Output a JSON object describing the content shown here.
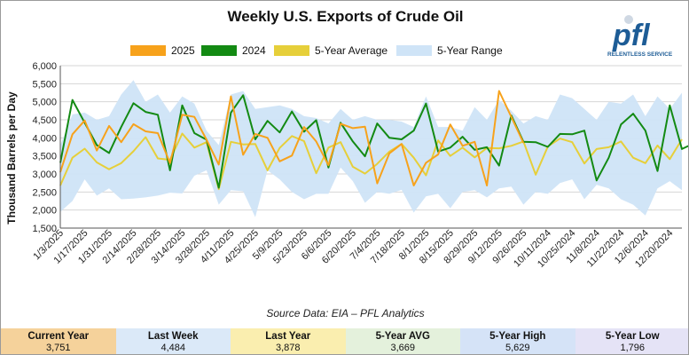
{
  "title": "Weekly U.S. Exports of Crude Oil",
  "source": "Source Data: EIA – PFL Analytics",
  "logo": {
    "text": "pfl",
    "tagline": "RELENTLESS SERVICE"
  },
  "colors": {
    "c2025": "#f7a21b",
    "c2024": "#138a13",
    "avg": "#e6cf3a",
    "range": "#cfe4f7"
  },
  "stats": [
    {
      "label": "Current Year",
      "value": "3,751",
      "color": "#f5d29b"
    },
    {
      "label": "Last Week",
      "value": "4,484",
      "color": "#dbe9f8"
    },
    {
      "label": "Last Year",
      "value": "3,878",
      "color": "#faeeaf"
    },
    {
      "label": "5-Year AVG",
      "value": "3,669",
      "color": "#e4f1dc"
    },
    {
      "label": "5-Year High",
      "value": "5,629",
      "color": "#d5e3f7"
    },
    {
      "label": "5-Year Low",
      "value": "1,796",
      "color": "#e5e3f6"
    }
  ],
  "chart_data": {
    "type": "line",
    "title": "Weekly U.S. Exports of Crude Oil",
    "ylabel": "Thousand Barrels per Day",
    "ylim": [
      1500,
      6000
    ],
    "yticks": [
      "1,500",
      "2,000",
      "2,500",
      "3,000",
      "3,500",
      "4,000",
      "4,500",
      "5,000",
      "5,500",
      "6,000"
    ],
    "x_tick_labels": [
      "1/3/2025",
      "1/17/2025",
      "1/31/2025",
      "2/14/2025",
      "2/28/2025",
      "3/14/2025",
      "3/28/2025",
      "4/11/2025",
      "4/25/2025",
      "5/9/2025",
      "5/23/2025",
      "6/6/2025",
      "6/20/2025",
      "7/4/2025",
      "7/18/2025",
      "8/1/2025",
      "8/15/2025",
      "8/29/2025",
      "9/12/2025",
      "9/26/2025",
      "10/11/2024",
      "10/25/2024",
      "11/8/2024",
      "11/22/2024",
      "12/6/2024",
      "12/20/2024"
    ],
    "legend": [
      "2025",
      "2024",
      "5-Year Average",
      "5-Year Range"
    ],
    "series": [
      {
        "name": "2025",
        "values": [
          3050,
          4100,
          4480,
          3650,
          4330,
          3880,
          4380,
          4180,
          4130,
          3300,
          4640,
          4580,
          3950,
          3260,
          5150,
          3530,
          4110,
          4000,
          3350,
          3510,
          4300,
          3900,
          3240,
          4390,
          4270,
          4310,
          2740,
          3570,
          3830,
          2680,
          3310,
          3540,
          4370,
          3780,
          3890,
          2680,
          5300,
          4580,
          3860
        ]
      },
      {
        "name": "2024",
        "values": [
          3310,
          5050,
          4420,
          3800,
          3580,
          4300,
          4960,
          4720,
          4640,
          3100,
          4900,
          4130,
          3950,
          2620,
          4700,
          5180,
          3960,
          4470,
          4150,
          4730,
          4170,
          4490,
          3180,
          4420,
          3900,
          3490,
          4400,
          4000,
          3960,
          4200,
          4950,
          3620,
          3730,
          4030,
          3670,
          3740,
          3230,
          4620,
          3890,
          3880,
          3750,
          4110,
          4100,
          4200,
          2820,
          3450,
          4370,
          4670,
          4200,
          3080,
          4900,
          3690,
          3850
        ]
      },
      {
        "name": "5-Year Average",
        "values": [
          2680,
          3450,
          3700,
          3320,
          3130,
          3300,
          3630,
          4020,
          3430,
          3390,
          4120,
          3730,
          3880,
          2580,
          3890,
          3820,
          3830,
          3100,
          3720,
          4050,
          3910,
          3020,
          3730,
          3880,
          3200,
          3010,
          3280,
          3620,
          3830,
          3450,
          2960,
          3930,
          3500,
          3730,
          3460,
          3720,
          3710,
          3780,
          3900,
          2980,
          3760,
          3980,
          3880,
          3290,
          3690,
          3740,
          3900,
          3450,
          3300,
          3790,
          3410,
          3960
        ]
      },
      {
        "name": "5-Year Range",
        "high": [
          3800,
          4650,
          4700,
          4500,
          4600,
          5200,
          5600,
          5000,
          5200,
          4700,
          5150,
          4950,
          4200,
          3800,
          5200,
          5300,
          4800,
          4850,
          4900,
          4800,
          4600,
          4550,
          4400,
          4800,
          4500,
          4600,
          4500,
          4500,
          4450,
          4300,
          5150,
          4300,
          4300,
          4200,
          4850,
          4500,
          5050,
          4750,
          4400,
          4600,
          4500,
          5200,
          5100,
          4800,
          4500,
          5000,
          4950,
          5200,
          4600,
          5150,
          4800,
          5250
        ],
        "low": [
          1950,
          2250,
          2850,
          2400,
          2600,
          2300,
          2320,
          2350,
          2400,
          2480,
          2460,
          2950,
          3100,
          2150,
          2550,
          2520,
          1800,
          3100,
          2850,
          2500,
          2300,
          2450,
          2450,
          3180,
          2800,
          2200,
          2500,
          2450,
          2560,
          1930,
          2380,
          2450,
          2050,
          2500,
          2550,
          2350,
          2600,
          2650,
          2150,
          2500,
          2450,
          2750,
          2850,
          2300,
          2700,
          2600,
          2300,
          2150,
          1850,
          2600,
          2800,
          2550
        ]
      }
    ]
  }
}
